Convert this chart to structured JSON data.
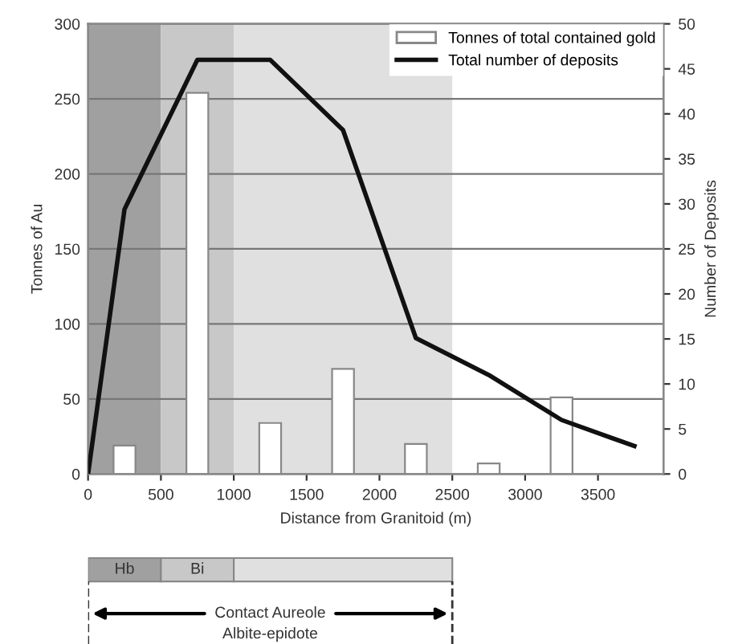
{
  "chart_data": {
    "type": "bar",
    "xlabel": "Distance from Granitoid (m)",
    "ylabel": "Tonnes of Au",
    "y2label": "Number of Deposits",
    "x": [
      250,
      750,
      1250,
      1750,
      2250,
      2750,
      3250
    ],
    "series": [
      {
        "name": "Tonnes of total contained gold",
        "color": "#ffffff",
        "values": [
          19,
          254,
          34,
          70,
          20,
          7,
          51
        ]
      },
      {
        "name": "Total number of deposits",
        "type": "line",
        "axis": "y2",
        "color": "#111111",
        "x": [
          0,
          250,
          750,
          1250,
          1750,
          2250,
          2750,
          3250,
          3750
        ],
        "values": [
          0,
          29.4,
          46,
          46,
          38.2,
          15.1,
          11,
          6,
          3.1
        ]
      }
    ],
    "xlim": [
      0,
      3950
    ],
    "xticks": [
      0,
      500,
      1000,
      1500,
      2000,
      2500,
      3000,
      3500
    ],
    "ylim": [
      0,
      300
    ],
    "yticks": [
      0,
      50,
      100,
      150,
      200,
      250,
      300
    ],
    "y2lim": [
      0,
      50
    ],
    "y2ticks": [
      0,
      5,
      10,
      15,
      20,
      25,
      30,
      35,
      40,
      45,
      50
    ],
    "bands": [
      {
        "axis": "x",
        "from": 0,
        "to": 500,
        "color": "#a0a0a0"
      },
      {
        "axis": "x",
        "from": 500,
        "to": 1000,
        "color": "#c8c8c8"
      },
      {
        "axis": "x",
        "from": 1000,
        "to": 2500,
        "color": "#e0e0e0"
      }
    ],
    "annotations": [
      "Hb",
      "Bi",
      "Contact Aureole",
      "Albite-epidote"
    ],
    "grid": "y",
    "legend": "top right",
    "marker": "none",
    "line_style": "solid"
  }
}
